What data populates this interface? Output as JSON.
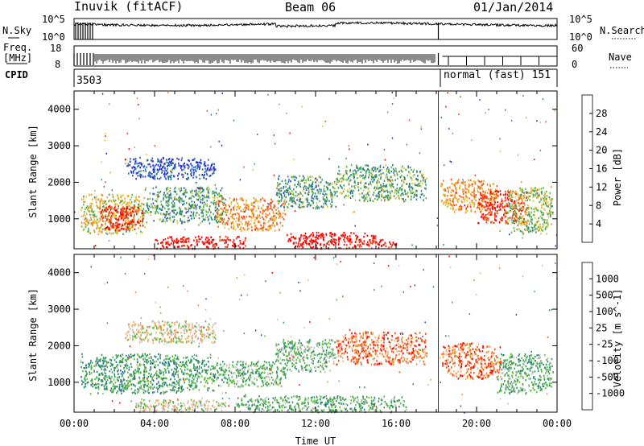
{
  "header": {
    "station": "Inuvik (fitACF)",
    "beam": "Beam 06",
    "date": "01/Jan/2014"
  },
  "top_panels": {
    "nsky_label": "N.Sky",
    "nsearch_label": "N.Search",
    "freq_label_line1": "Freq.",
    "freq_label_line2": "[MHz]",
    "nave_label": "Nave",
    "cpid_label": "CPID",
    "noise_ticks_left": [
      "10^5",
      "10^0"
    ],
    "noise_ticks_right": [
      "10^5",
      "10^0"
    ],
    "freq_ticks": [
      "18",
      "8"
    ],
    "nave_ticks": [
      "60",
      "0"
    ],
    "cpid_segments": [
      {
        "start_hour": 0,
        "end_hour": 18.1,
        "label": "3503"
      },
      {
        "start_hour": 18.1,
        "end_hour": 24,
        "label": "normal (fast) 151"
      }
    ]
  },
  "chart_data": [
    {
      "type": "heatmap",
      "title": "",
      "parameter": "Power",
      "colorbar_label": "Power [dB]",
      "colorbar_ticks": [
        "4",
        "8",
        "12",
        "16",
        "20",
        "24",
        "28"
      ],
      "colorbar_colors": [
        "#1e1ee6",
        "#2d50c8",
        "#2f7a9a",
        "#3c9464",
        "#5fb450",
        "#dcc832",
        "#f0a028",
        "#f07820",
        "#ff3c14",
        "#ff0000"
      ],
      "xlabel": "",
      "ylabel": "Slant Range [km]",
      "yticks": [
        "1000",
        "2000",
        "3000",
        "4000"
      ],
      "ylim": [
        180,
        4500
      ],
      "xlim": [
        0,
        24
      ],
      "scatter_regions": [
        {
          "t0": 0.3,
          "t1": 3.5,
          "r0": 600,
          "r1": 1700,
          "level": 0.55
        },
        {
          "t0": 1.2,
          "t1": 3.5,
          "r0": 700,
          "r1": 1400,
          "level": 0.95
        },
        {
          "t0": 3.5,
          "t1": 7.5,
          "r0": 900,
          "r1": 1900,
          "level": 0.35
        },
        {
          "t0": 7.0,
          "t1": 10.5,
          "r0": 700,
          "r1": 1600,
          "level": 0.7
        },
        {
          "t0": 4.0,
          "t1": 8.5,
          "r0": 200,
          "r1": 550,
          "level": 1.0
        },
        {
          "t0": 10.5,
          "t1": 15.0,
          "r0": 200,
          "r1": 650,
          "level": 1.0
        },
        {
          "t0": 14.5,
          "t1": 16.0,
          "r0": 200,
          "r1": 450,
          "level": 0.95
        },
        {
          "t0": 10.0,
          "t1": 13.0,
          "r0": 1300,
          "r1": 2200,
          "level": 0.35
        },
        {
          "t0": 13.0,
          "t1": 17.5,
          "r0": 1500,
          "r1": 2500,
          "level": 0.4
        },
        {
          "t0": 18.2,
          "t1": 21.0,
          "r0": 1200,
          "r1": 2100,
          "level": 0.7
        },
        {
          "t0": 20.0,
          "t1": 22.5,
          "r0": 900,
          "r1": 1800,
          "level": 0.9
        },
        {
          "t0": 21.5,
          "t1": 23.8,
          "r0": 600,
          "r1": 1900,
          "level": 0.5
        },
        {
          "t0": 2.5,
          "t1": 7.0,
          "r0": 2100,
          "r1": 2700,
          "level": 0.15
        }
      ]
    },
    {
      "type": "heatmap",
      "title": "",
      "parameter": "Velocity",
      "colorbar_label": "Velocity [m s^-1]",
      "colorbar_ticks": [
        "1000",
        "500",
        "100",
        "25",
        "-25",
        "-100",
        "-500",
        "-1000"
      ],
      "colorbar_colors": [
        "#1e3cc8",
        "#2d64a0",
        "#2f8c78",
        "#3ca050",
        "#5fbe3c",
        "#bebebe",
        "#f0b478",
        "#f08c28",
        "#f05014",
        "#ff0000"
      ],
      "xlabel": "Time UT",
      "ylabel": "Slant Range [km]",
      "yticks": [
        "1000",
        "2000",
        "3000",
        "4000"
      ],
      "xticks": [
        "00:00",
        "04:00",
        "08:00",
        "12:00",
        "16:00",
        "20:00",
        "00:00"
      ],
      "ylim": [
        180,
        4500
      ],
      "xlim": [
        0,
        24
      ],
      "scatter_regions": [
        {
          "t0": 0.3,
          "t1": 7.0,
          "r0": 700,
          "r1": 1800,
          "level": 0.32
        },
        {
          "t0": 7.0,
          "t1": 10.5,
          "r0": 900,
          "r1": 1600,
          "level": 0.4
        },
        {
          "t0": 3.0,
          "t1": 7.5,
          "r0": 200,
          "r1": 550,
          "level": 0.55
        },
        {
          "t0": 8.0,
          "t1": 16.5,
          "r0": 200,
          "r1": 650,
          "level": 0.38
        },
        {
          "t0": 10.0,
          "t1": 13.0,
          "r0": 1300,
          "r1": 2200,
          "level": 0.42
        },
        {
          "t0": 13.0,
          "t1": 17.5,
          "r0": 1500,
          "r1": 2400,
          "level": 0.8
        },
        {
          "t0": 18.2,
          "t1": 21.2,
          "r0": 1100,
          "r1": 2100,
          "level": 0.82
        },
        {
          "t0": 21.0,
          "t1": 23.8,
          "r0": 700,
          "r1": 1800,
          "level": 0.4
        },
        {
          "t0": 2.5,
          "t1": 7.0,
          "r0": 2100,
          "r1": 2700,
          "level": 0.6
        }
      ]
    }
  ]
}
